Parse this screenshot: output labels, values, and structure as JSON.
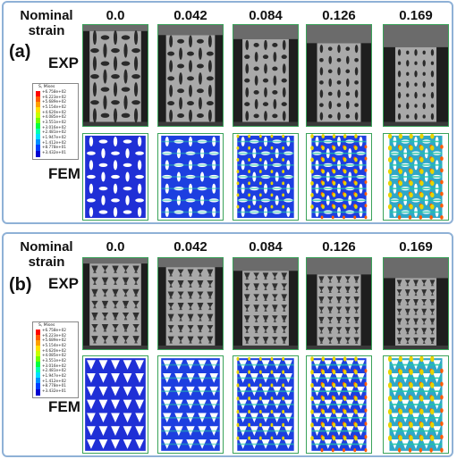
{
  "panels": [
    {
      "letter": "(a)",
      "header_line1": "Nominal",
      "header_line2": "strain",
      "strains": [
        "0.0",
        "0.042",
        "0.084",
        "0.126",
        "0.169"
      ],
      "exp_label": "EXP",
      "fem_label": "FEM",
      "legend": {
        "title": "S, Mises",
        "ticks": [
          "+6.758e+02",
          "+6.223e+02",
          "+5.689e+02",
          "+5.154e+02",
          "+4.620e+02",
          "+4.085e+02",
          "+3.551e+02",
          "+3.016e+02",
          "+2.481e+02",
          "+1.947e+02",
          "+1.412e+02",
          "+8.778e+01",
          "+3.432e+01"
        ]
      }
    },
    {
      "letter": "(b)",
      "header_line1": "Nominal",
      "header_line2": "strain",
      "strains": [
        "0.0",
        "0.042",
        "0.084",
        "0.126",
        "0.169"
      ],
      "exp_label": "EXP",
      "fem_label": "FEM",
      "legend": {
        "title": "S, Mises",
        "ticks": [
          "+6.758e+02",
          "+6.223e+02",
          "+5.689e+02",
          "+5.154e+02",
          "+4.620e+02",
          "+4.085e+02",
          "+3.551e+02",
          "+3.016e+02",
          "+2.481e+02",
          "+1.947e+02",
          "+1.412e+02",
          "+8.778e+01",
          "+3.432e+01"
        ]
      }
    }
  ],
  "colors": {
    "panel_border": "#8fb1d6",
    "cell_border": "#3aa35a",
    "fem_base": "#1f2fd6",
    "fem_hot": "#e8d400"
  }
}
